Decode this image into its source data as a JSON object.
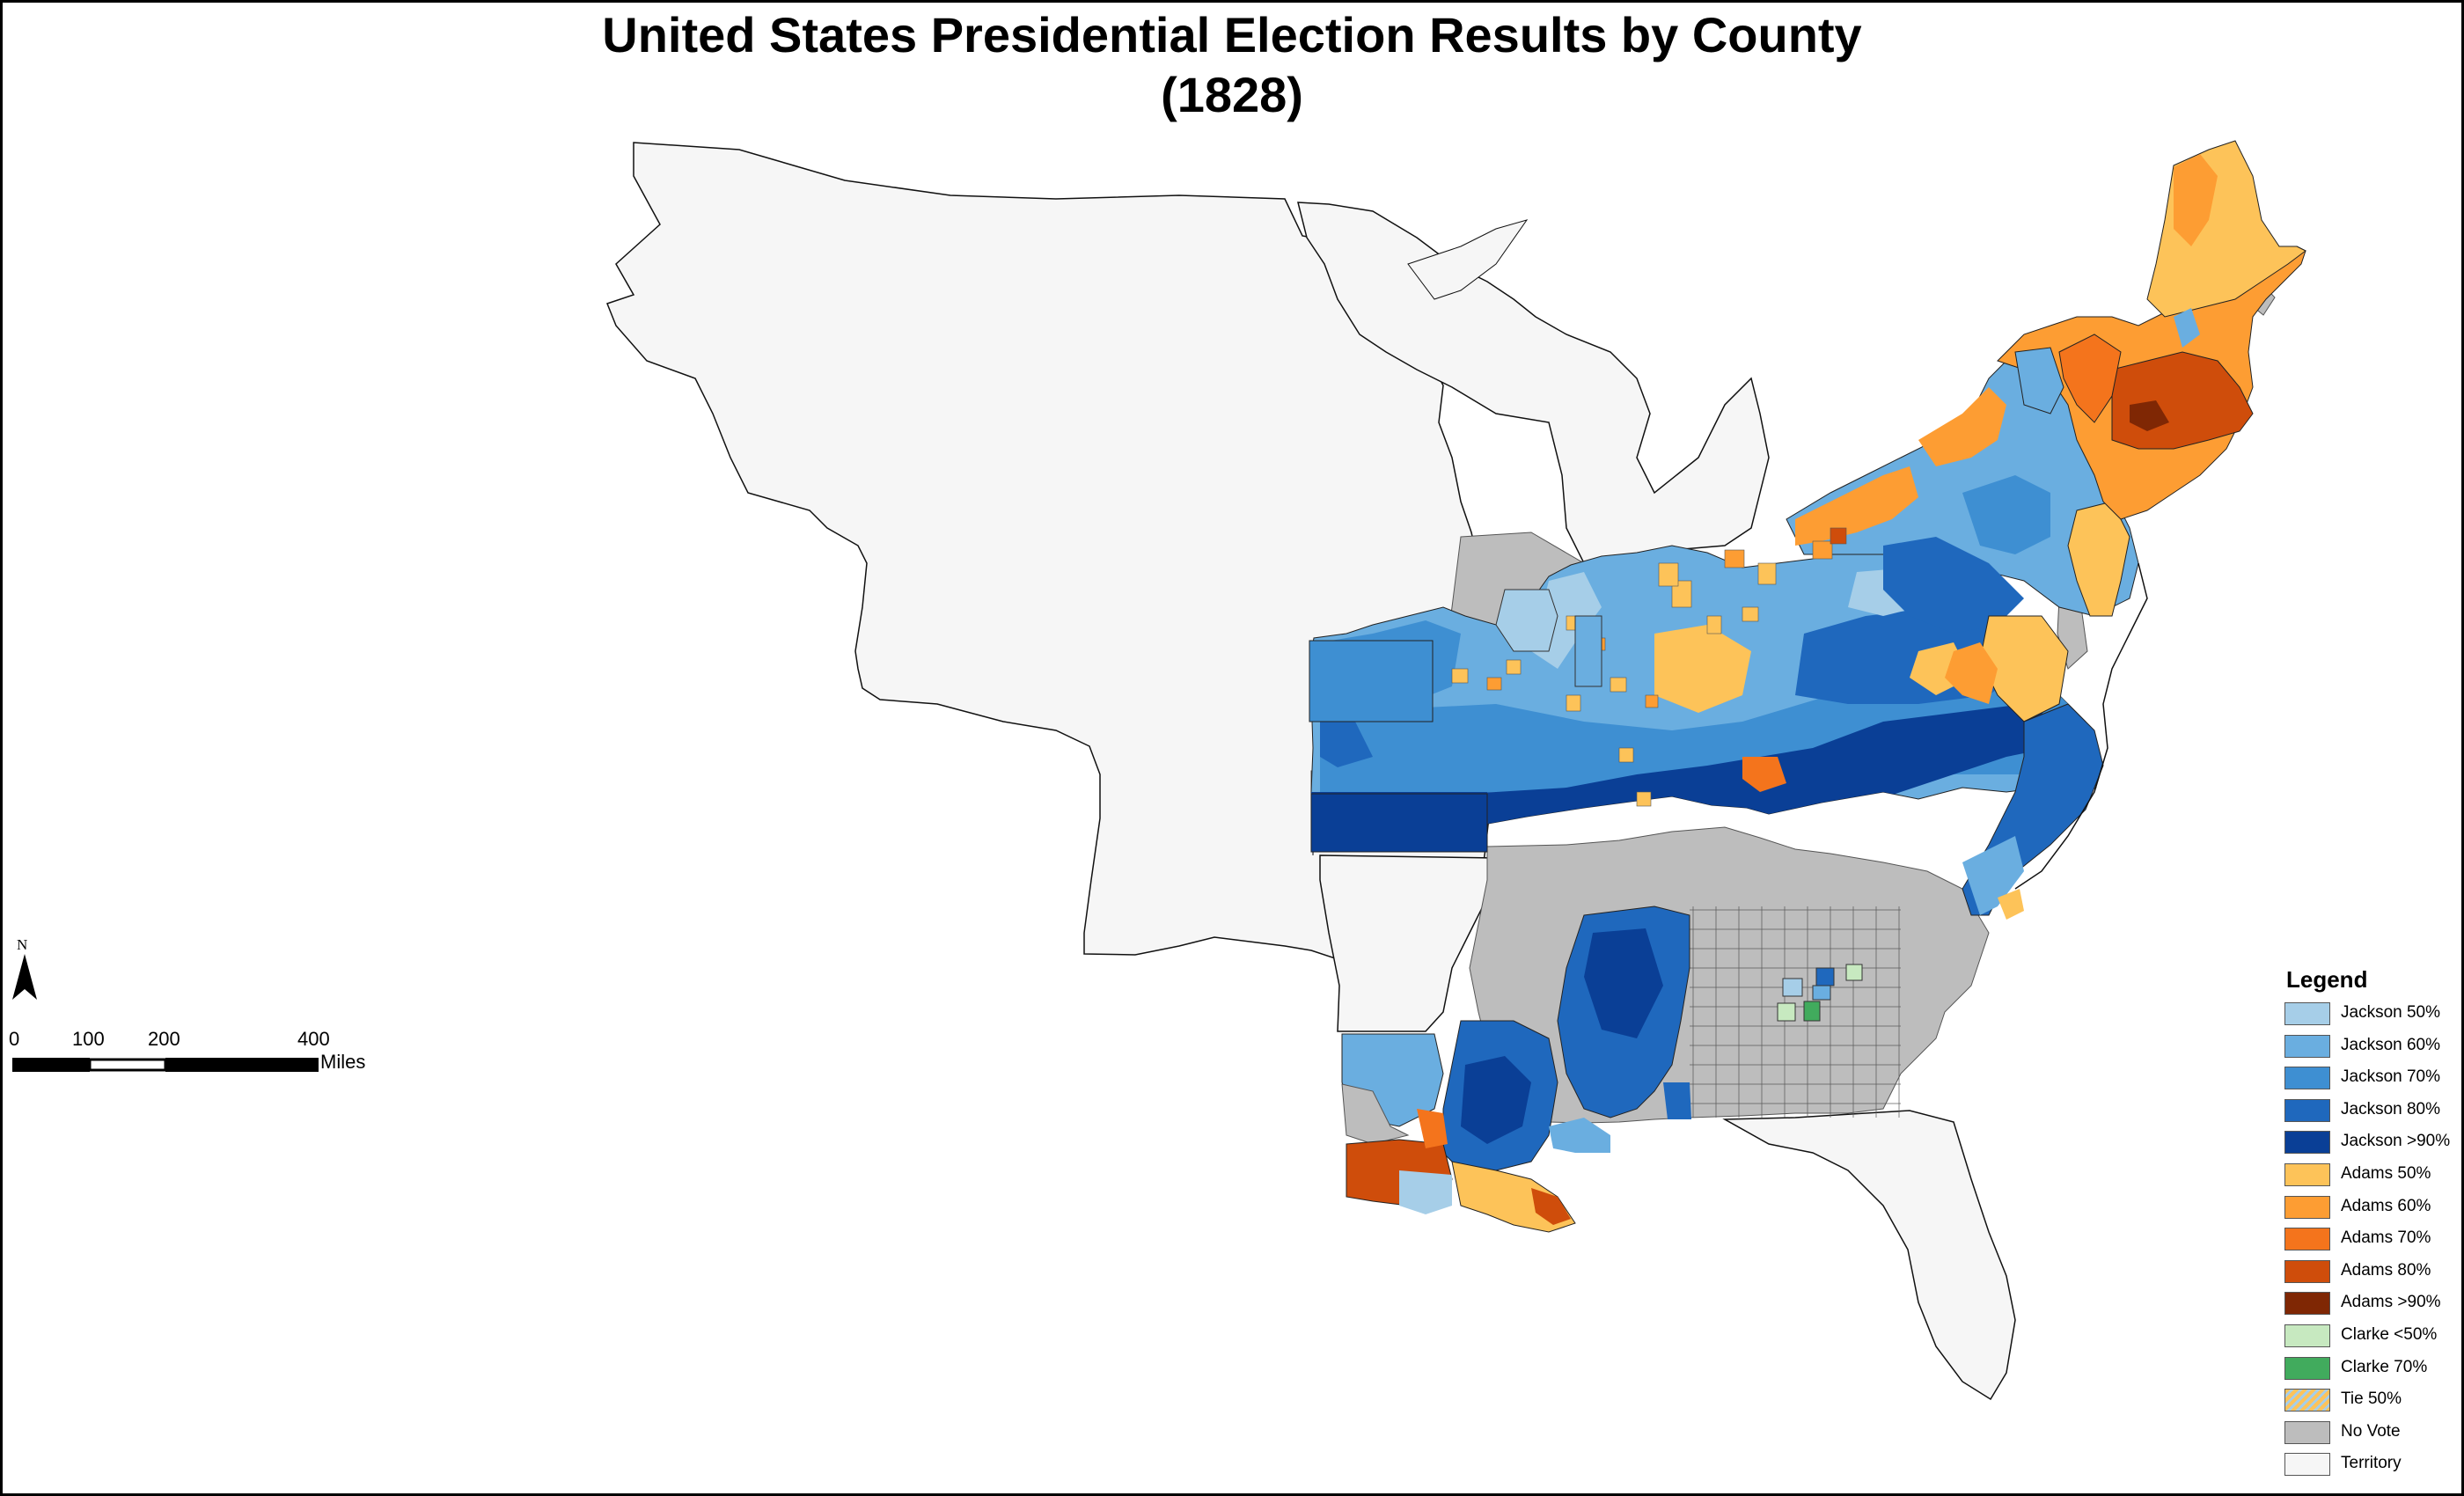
{
  "title": {
    "line1": "United States Presidential Election Results by County",
    "line2": "(1828)"
  },
  "north_arrow": {
    "label": "N",
    "icon": "north-arrow-icon"
  },
  "scale": {
    "ticks": [
      "0",
      "100",
      "200",
      "400"
    ],
    "unit": "Miles"
  },
  "legend": {
    "title": "Legend",
    "items": [
      {
        "label": "Jackson 50%",
        "color": "#a6cee8"
      },
      {
        "label": "Jackson 60%",
        "color": "#6aaee0"
      },
      {
        "label": "Jackson 70%",
        "color": "#3e8fd2"
      },
      {
        "label": "Jackson 80%",
        "color": "#1f68bd"
      },
      {
        "label": "Jackson >90%",
        "color": "#0a3f96"
      },
      {
        "label": "Adams 50%",
        "color": "#fdc359"
      },
      {
        "label": "Adams 60%",
        "color": "#fd9d33"
      },
      {
        "label": "Adams 70%",
        "color": "#f4741c"
      },
      {
        "label": "Adams 80%",
        "color": "#cf4d0b"
      },
      {
        "label": "Adams >90%",
        "color": "#7f2704"
      },
      {
        "label": "Clarke <50%",
        "color": "#c7e9c0"
      },
      {
        "label": "Clarke 70%",
        "color": "#41ab5d"
      },
      {
        "label": "Tie 50%",
        "color": "#e8c48a"
      },
      {
        "label": "No Vote",
        "color": "#bdbdbd"
      },
      {
        "label": "Territory",
        "color": "#f6f6f6"
      }
    ]
  }
}
